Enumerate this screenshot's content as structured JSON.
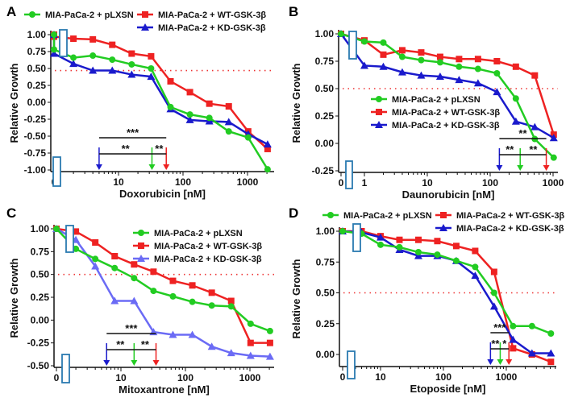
{
  "chart_data": [
    {
      "panel": "A",
      "type": "line",
      "xlabel": "Doxorubicin [nM]",
      "ylabel": "Relative Growth",
      "xscale": "log",
      "xticks": [
        "0",
        "10",
        "100",
        "1000"
      ],
      "yticks": [
        "1.00",
        "0.75",
        "0.50",
        "0.25",
        "0.00",
        "-0.25",
        "-0.50",
        "-0.75",
        "-1.00"
      ],
      "ylim": [
        -1.0,
        1.0
      ],
      "threshold": 0.47,
      "legend": "top",
      "x": [
        0,
        1,
        2,
        4,
        8,
        16,
        32,
        64,
        128,
        256,
        512,
        1024,
        2048
      ],
      "series": [
        {
          "name": "MIA-PaCa-2 + pLXSN",
          "color": "#22cc22",
          "marker": "circle",
          "values": [
            1.0,
            0.78,
            0.66,
            0.69,
            0.63,
            0.56,
            0.5,
            -0.07,
            -0.18,
            -0.23,
            -0.43,
            -0.52,
            -0.99
          ]
        },
        {
          "name": "MIA-PaCa-2 + WT-GSK-3β",
          "color": "#ee2222",
          "marker": "square",
          "values": [
            1.0,
            0.97,
            0.94,
            0.93,
            0.85,
            0.72,
            0.68,
            0.31,
            0.15,
            -0.02,
            -0.06,
            -0.43,
            -0.69
          ]
        },
        {
          "name": "MIA-PaCa-2 + KD-GSK-3β",
          "color": "#1a1acc",
          "marker": "triangle",
          "values": [
            1.0,
            0.72,
            0.57,
            0.47,
            0.47,
            0.41,
            0.38,
            -0.1,
            -0.26,
            -0.28,
            -0.29,
            -0.47,
            -0.62
          ]
        }
      ],
      "ic50_arrows": {
        "blue": 5,
        "green": 33,
        "red": 55
      },
      "significance": [
        {
          "from": "blue",
          "to": "red",
          "label": "***"
        },
        {
          "from": "blue",
          "to": "green",
          "label": "**"
        },
        {
          "from": "green",
          "to": "red",
          "label": "**"
        }
      ]
    },
    {
      "panel": "B",
      "type": "line",
      "xlabel": "Daunorubicin [nM]",
      "ylabel": "Relative Growth",
      "xscale": "log",
      "xticks": [
        "0",
        "1",
        "10",
        "100",
        "1000"
      ],
      "yticks": [
        "1.00",
        "0.75",
        "0.50",
        "0.25",
        "0.00",
        "-0.25"
      ],
      "ylim": [
        -0.25,
        1.0
      ],
      "threshold": 0.5,
      "legend": "center",
      "x": [
        0,
        1,
        2,
        4,
        8,
        16,
        32,
        64,
        128,
        256,
        512,
        1024
      ],
      "series": [
        {
          "name": "MIA-PaCa-2 + pLXSN",
          "color": "#22cc22",
          "marker": "circle",
          "values": [
            1.0,
            0.93,
            0.92,
            0.79,
            0.76,
            0.74,
            0.7,
            0.68,
            0.64,
            0.41,
            0.04,
            -0.13
          ]
        },
        {
          "name": "MIA-PaCa-2 + WT-GSK-3β",
          "color": "#ee2222",
          "marker": "square",
          "values": [
            1.0,
            0.94,
            0.81,
            0.85,
            0.83,
            0.79,
            0.77,
            0.77,
            0.75,
            0.7,
            0.62,
            0.08
          ]
        },
        {
          "name": "MIA-PaCa-2 + KD-GSK-3β",
          "color": "#1a1acc",
          "marker": "triangle",
          "values": [
            1.0,
            0.71,
            0.7,
            0.65,
            0.62,
            0.61,
            0.58,
            0.55,
            0.47,
            0.2,
            0.15,
            0.05
          ]
        }
      ],
      "ic50_arrows": {
        "blue": 140,
        "green": 300,
        "red": 780
      },
      "significance": [
        {
          "from": "blue",
          "to": "red",
          "label": "**"
        },
        {
          "from": "blue",
          "to": "green",
          "label": "**"
        },
        {
          "from": "green",
          "to": "red",
          "label": "**"
        }
      ]
    },
    {
      "panel": "C",
      "type": "line",
      "xlabel": "Mitoxantrone [nM]",
      "ylabel": "Relative Growth",
      "xscale": "log",
      "xticks": [
        "0",
        "10",
        "100",
        "1000"
      ],
      "yticks": [
        "1.00",
        "0.75",
        "0.50",
        "0.25",
        "0.00",
        "-0.25",
        "-0.50"
      ],
      "ylim": [
        -0.5,
        1.0
      ],
      "threshold": 0.5,
      "legend": "top-right",
      "x": [
        0,
        2,
        4,
        8,
        16,
        32,
        64,
        128,
        256,
        512,
        1024,
        2048
      ],
      "series": [
        {
          "name": "MIA-PaCa-2 + pLXSN",
          "color": "#22cc22",
          "marker": "circle",
          "values": [
            1.0,
            0.78,
            0.67,
            0.57,
            0.46,
            0.32,
            0.26,
            0.2,
            0.16,
            0.15,
            -0.04,
            -0.12
          ]
        },
        {
          "name": "MIA-PaCa-2 + WT-GSK-3β",
          "color": "#ee2222",
          "marker": "square",
          "values": [
            1.0,
            0.97,
            0.85,
            0.7,
            0.61,
            0.53,
            0.43,
            0.38,
            0.3,
            0.21,
            -0.25,
            -0.25
          ]
        },
        {
          "name": "MIA-PaCa-2 + KD-GSK-3β",
          "color": "#6b6bf5",
          "marker": "triangle",
          "values": [
            1.0,
            0.88,
            0.59,
            0.21,
            0.21,
            -0.13,
            -0.16,
            -0.16,
            -0.29,
            -0.36,
            -0.39,
            -0.4
          ]
        }
      ],
      "ic50_arrows": {
        "blue": 6,
        "green": 16,
        "red": 35
      },
      "significance": [
        {
          "from": "blue",
          "to": "red",
          "label": "***"
        },
        {
          "from": "blue",
          "to": "green",
          "label": "**"
        },
        {
          "from": "green",
          "to": "red",
          "label": "**"
        }
      ]
    },
    {
      "panel": "D",
      "type": "line",
      "xlabel": "Etoposide [nM]",
      "ylabel": "Relative Growth",
      "xscale": "log",
      "xticks": [
        "0",
        "10",
        "100",
        "1000"
      ],
      "yticks": [
        "1.00",
        "0.75",
        "0.50",
        "0.25",
        "0.00"
      ],
      "ylim": [
        -0.1,
        1.0
      ],
      "threshold": 0.5,
      "legend": "top",
      "x": [
        0,
        5,
        10,
        20,
        40,
        80,
        160,
        320,
        640,
        1280,
        2560,
        5120
      ],
      "series": [
        {
          "name": "MIA-PaCa-2 + pLXSN",
          "color": "#22cc22",
          "marker": "circle",
          "values": [
            1.0,
            0.98,
            0.89,
            0.87,
            0.83,
            0.81,
            0.76,
            0.71,
            0.5,
            0.23,
            0.23,
            0.17
          ]
        },
        {
          "name": "MIA-PaCa-2 + WT-GSK-3β",
          "color": "#ee2222",
          "marker": "square",
          "values": [
            1.0,
            1.0,
            0.96,
            0.93,
            0.93,
            0.92,
            0.88,
            0.84,
            0.67,
            0.05,
            0.0,
            -0.06
          ]
        },
        {
          "name": "MIA-PaCa-2 + KD-GSK-3β",
          "color": "#1a1acc",
          "marker": "triangle",
          "values": [
            1.0,
            0.99,
            0.95,
            0.85,
            0.8,
            0.8,
            0.76,
            0.64,
            0.39,
            0.12,
            0.01,
            0.01
          ]
        }
      ],
      "ic50_arrows": {
        "blue": 560,
        "green": 800,
        "red": 1100
      },
      "significance": [
        {
          "from": "blue",
          "to": "red",
          "label": "***"
        },
        {
          "from": "blue",
          "to": "green",
          "label": "**"
        },
        {
          "from": "green",
          "to": "red",
          "label": "*"
        }
      ]
    }
  ]
}
